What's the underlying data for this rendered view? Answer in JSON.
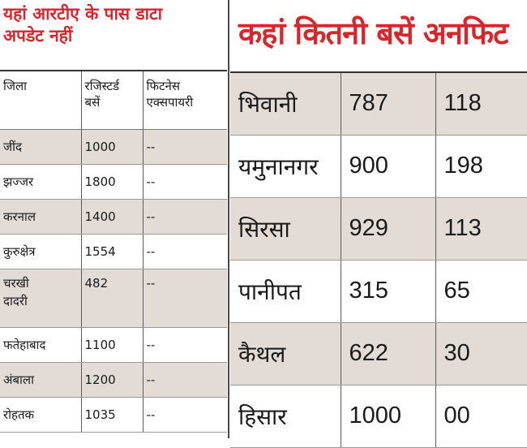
{
  "left": {
    "title_line1": "यहां आरटीए के पास डाटा",
    "title_line2": "अपडेट नहीं",
    "headers": {
      "col1": "जिला",
      "col2_line1": "रजिस्टर्ड",
      "col2_line2": "बसें",
      "col3_line1": "फिटनेस",
      "col3_line2": "एक्सपायरी"
    },
    "rows": [
      {
        "district": "जींद",
        "registered": "1000",
        "expiry": "--"
      },
      {
        "district": "झज्जर",
        "registered": "1800",
        "expiry": "--"
      },
      {
        "district": "करनाल",
        "registered": "1400",
        "expiry": "--"
      },
      {
        "district": "कुरुक्षेत्र",
        "registered": "1554",
        "expiry": "--"
      },
      {
        "district_line1": "चरखी",
        "district_line2": "दादरी",
        "registered": "482",
        "expiry": "--"
      },
      {
        "district": "फतेहाबाद",
        "registered": "1100",
        "expiry": "--"
      },
      {
        "district": "अंबाला",
        "registered": "1200",
        "expiry": "--"
      },
      {
        "district": "रोहतक",
        "registered": "1035",
        "expiry": "--"
      }
    ]
  },
  "right": {
    "title": "कहां कितनी बसें अनफिट",
    "rows": [
      {
        "district": "भिवानी",
        "total": "787",
        "unfit": "118"
      },
      {
        "district": "यमुनानगर",
        "total": "900",
        "unfit": "198"
      },
      {
        "district": "सिरसा",
        "total": "929",
        "unfit": "113"
      },
      {
        "district": "पानीपत",
        "total": "315",
        "unfit": "65"
      },
      {
        "district": "कैथल",
        "total": "622",
        "unfit": "30"
      },
      {
        "district": "हिसार",
        "total": "1000",
        "unfit": "00"
      }
    ]
  },
  "colors": {
    "title_red": "#d8262d",
    "row_shade": "#e3dcd6"
  }
}
